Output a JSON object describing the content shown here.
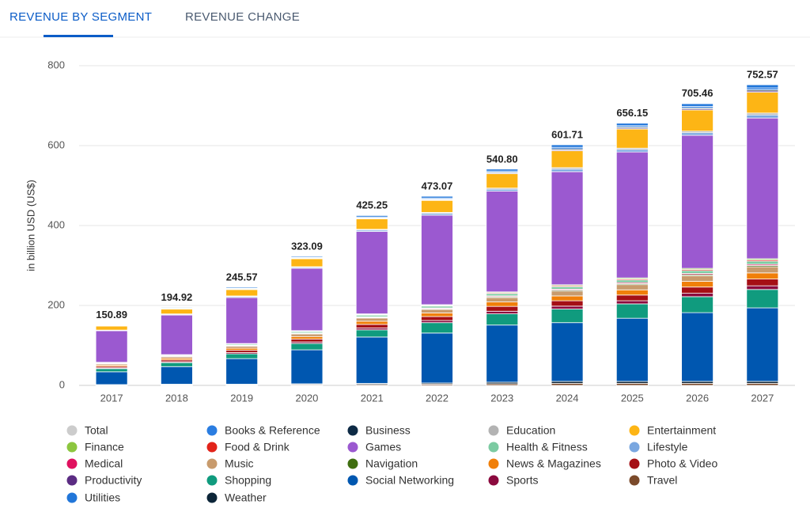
{
  "tabs": [
    "REVENUE BY SEGMENT",
    "REVENUE CHANGE"
  ],
  "chart_data": {
    "type": "stacked_bar",
    "y_label": "in billion USD (US$)",
    "categories": [
      "2017",
      "2018",
      "2019",
      "2020",
      "2021",
      "2022",
      "2023",
      "2024",
      "2025",
      "2026",
      "2027"
    ],
    "ylim": [
      0,
      800
    ],
    "yticks": [
      0,
      200,
      400,
      600,
      800
    ],
    "grid": true,
    "total_name": "Total",
    "total_color": "#cccccc",
    "totals": [
      150.89,
      194.92,
      245.57,
      323.09,
      425.25,
      473.07,
      540.8,
      601.71,
      656.15,
      705.46,
      752.57
    ],
    "total_labels": [
      "150.89",
      "194.92",
      "245.57",
      "323.09",
      "425.25",
      "473.07",
      "540.80",
      "601.71",
      "656.15",
      "705.46",
      "752.57"
    ],
    "series": [
      {
        "name": "Books & Reference",
        "color": "#2a7de1",
        "values": [
          0.6,
          1,
          1.5,
          1.5,
          2.1,
          2.6,
          2.9,
          3.8,
          3.6,
          3.9,
          4.7
        ]
      },
      {
        "name": "Business",
        "color": "#0d2a45",
        "values": [
          0.4,
          0.7,
          1,
          1,
          1.4,
          1.7,
          1.9,
          2.5,
          2.4,
          2.6,
          3.1
        ]
      },
      {
        "name": "Education",
        "color": "#b3b3b3",
        "values": [
          0.6,
          1,
          1.5,
          1.5,
          2.1,
          2.6,
          2.9,
          3.8,
          3.6,
          3.9,
          4.7
        ]
      },
      {
        "name": "Entertainment",
        "color": "#fdb515",
        "values": [
          10,
          12,
          16,
          20,
          26,
          30,
          36,
          42,
          48,
          53,
          52
        ]
      },
      {
        "name": "Finance",
        "color": "#8cc63f",
        "values": [
          0.6,
          0.8,
          1,
          1.3,
          1.6,
          1.8,
          2.2,
          2.4,
          2.6,
          2.8,
          3.1
        ]
      },
      {
        "name": "Food & Drink",
        "color": "#e2231a",
        "values": [
          0.6,
          0.8,
          1,
          1.3,
          1.6,
          1.8,
          2.2,
          2.4,
          2.6,
          2.8,
          3.1
        ]
      },
      {
        "name": "Games",
        "color": "#9b59d0",
        "values": [
          79,
          99,
          115,
          156,
          206,
          224,
          252,
          283,
          315,
          333,
          352
        ]
      },
      {
        "name": "Health & Fitness",
        "color": "#7ccba2",
        "values": [
          1.6,
          2,
          2.6,
          3.2,
          4,
          4.5,
          5.5,
          6.1,
          6.5,
          7.1,
          7.7
        ]
      },
      {
        "name": "Lifestyle",
        "color": "#7aa7e0",
        "values": [
          1,
          1.8,
          2.5,
          2.5,
          3.5,
          4.3,
          4.8,
          6.3,
          6,
          6.5,
          7.8
        ]
      },
      {
        "name": "Medical",
        "color": "#e0115f",
        "values": [
          0.6,
          0.8,
          1,
          1.3,
          1.6,
          1.8,
          2.2,
          2.4,
          2.6,
          2.8,
          3.1
        ]
      },
      {
        "name": "Music",
        "color": "#c89b6d",
        "values": [
          3.2,
          4,
          5.2,
          6.4,
          8,
          9,
          11,
          12.2,
          13,
          14.2,
          15.4
        ]
      },
      {
        "name": "Navigation",
        "color": "#3f6e10",
        "values": [
          0.6,
          0.8,
          1,
          1.3,
          1.6,
          1.8,
          2.2,
          2.4,
          2.6,
          2.8,
          3.1
        ]
      },
      {
        "name": "News & Magazines",
        "color": "#f07f09",
        "values": [
          3.2,
          4,
          5.2,
          6.4,
          8,
          9,
          11,
          12.2,
          13,
          14.2,
          15.4
        ]
      },
      {
        "name": "Photo & Video",
        "color": "#a50f15",
        "values": [
          3.5,
          4.4,
          5.7,
          7,
          8.8,
          9.9,
          12.1,
          13.4,
          14.3,
          15.6,
          16.9
        ]
      },
      {
        "name": "Productivity",
        "color": "#5b2c83",
        "values": [
          0.4,
          0.7,
          1,
          1,
          1.4,
          1.7,
          1.9,
          2.5,
          2.4,
          2.6,
          3.1
        ]
      },
      {
        "name": "Shopping",
        "color": "#109b7e",
        "values": [
          8,
          10,
          12,
          16,
          18,
          26,
          28,
          34,
          36,
          40,
          46
        ]
      },
      {
        "name": "Social Networking",
        "color": "#0057b0",
        "values": [
          32,
          44,
          64,
          85,
          116,
          125,
          143,
          147,
          158,
          172,
          184
        ]
      },
      {
        "name": "Sports",
        "color": "#8b0a3e",
        "values": [
          1.9,
          2.4,
          3.1,
          3.8,
          4.8,
          5.4,
          6.6,
          7.3,
          7.8,
          8.5,
          9.2
        ]
      },
      {
        "name": "Travel",
        "color": "#7b4a2b",
        "values": [
          1,
          1.5,
          1.5,
          2,
          2.5,
          3,
          4,
          5,
          5,
          5,
          5
        ]
      },
      {
        "name": "Utilities",
        "color": "#2176d9",
        "values": [
          1,
          1.8,
          2.5,
          2.5,
          3.5,
          4.3,
          4.8,
          6.3,
          6,
          6.5,
          7.8
        ]
      },
      {
        "name": "Weather",
        "color": "#0c2538",
        "values": [
          1,
          1.5,
          1.5,
          2,
          2.5,
          3,
          4,
          5,
          5,
          5,
          5
        ]
      }
    ]
  }
}
